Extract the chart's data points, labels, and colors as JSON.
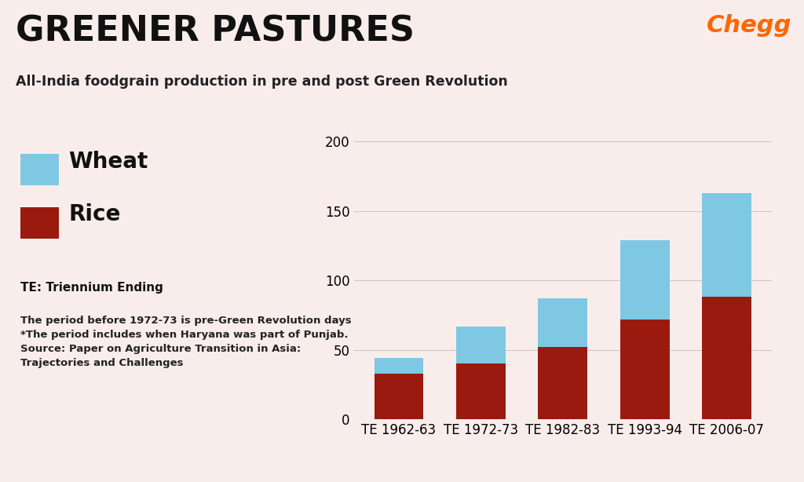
{
  "title": "GREENER PASTURES",
  "subtitle": "All-India foodgrain production in pre and post Green Revolution",
  "categories": [
    "TE 1962-63",
    "TE 1972-73",
    "TE 1982-83",
    "TE 1993-94",
    "TE 2006-07"
  ],
  "rice_values": [
    33,
    40,
    52,
    72,
    88
  ],
  "wheat_values": [
    11,
    27,
    35,
    57,
    75
  ],
  "rice_color": "#9B1A10",
  "wheat_color": "#7EC8E3",
  "background_color": "#F9EDEC",
  "ylim": [
    0,
    215
  ],
  "yticks": [
    0,
    50,
    100,
    150,
    200
  ],
  "legend_wheat": "Wheat",
  "legend_rice": "Rice",
  "note1": "TE: Triennium Ending",
  "note2": "The period before 1972-73 is pre-Green Revolution days\n*The period includes when Haryana was part of Punjab.\nSource: Paper on Agriculture Transition in Asia:\nTrajectories and Challenges",
  "chegg_color": "#FF6600",
  "chegg_label": "Chegg",
  "title_fontsize": 32,
  "subtitle_fontsize": 12.5,
  "axis_fontsize": 12,
  "legend_fontsize": 20,
  "note1_fontsize": 11,
  "note2_fontsize": 9.5,
  "bar_width": 0.6
}
